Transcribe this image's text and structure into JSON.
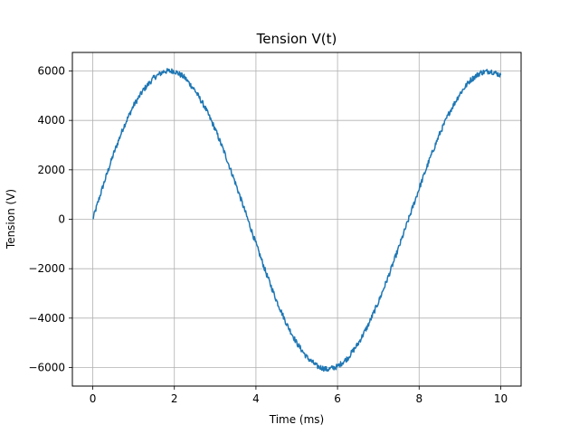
{
  "chart_data": {
    "type": "line",
    "title": "Tension V(t)",
    "xlabel": "Time (ms)",
    "ylabel": "Tension (V)",
    "xlim": [
      -0.5,
      10.5
    ],
    "ylim": [
      -6750,
      6750
    ],
    "xticks": [
      0,
      2,
      4,
      6,
      8,
      10
    ],
    "yticks": [
      -6000,
      -4000,
      -2000,
      0,
      2000,
      4000,
      6000
    ],
    "xtick_labels": [
      "0",
      "2",
      "4",
      "6",
      "8",
      "10"
    ],
    "ytick_labels": [
      "−6000",
      "−4000",
      "−2000",
      "0",
      "2000",
      "4000",
      "6000"
    ],
    "grid": true,
    "series": [
      {
        "color": "#1f77b4",
        "x": [
          0,
          0.25,
          0.5,
          0.75,
          1.0,
          1.25,
          1.5,
          1.75,
          2.0,
          2.25,
          2.5,
          2.75,
          3.0,
          3.25,
          3.5,
          3.75,
          4.0,
          4.25,
          4.5,
          4.75,
          5.0,
          5.25,
          5.5,
          5.75,
          6.0,
          6.25,
          6.5,
          6.75,
          7.0,
          7.25,
          7.5,
          7.75,
          8.0,
          8.25,
          8.5,
          8.75,
          9.0,
          9.25,
          9.5,
          9.75,
          10.0
        ],
        "y": [
          0,
          1340,
          2600,
          3710,
          4600,
          5250,
          5730,
          5990,
          6000,
          5740,
          5230,
          4530,
          3650,
          2600,
          1450,
          240,
          -990,
          -2180,
          -3270,
          -4230,
          -5010,
          -5590,
          -5950,
          -6080,
          -5960,
          -5620,
          -5050,
          -4290,
          -3360,
          -2300,
          -1150,
          40,
          1240,
          2390,
          3440,
          4350,
          5080,
          5620,
          5930,
          6000,
          5830
        ]
      }
    ]
  }
}
